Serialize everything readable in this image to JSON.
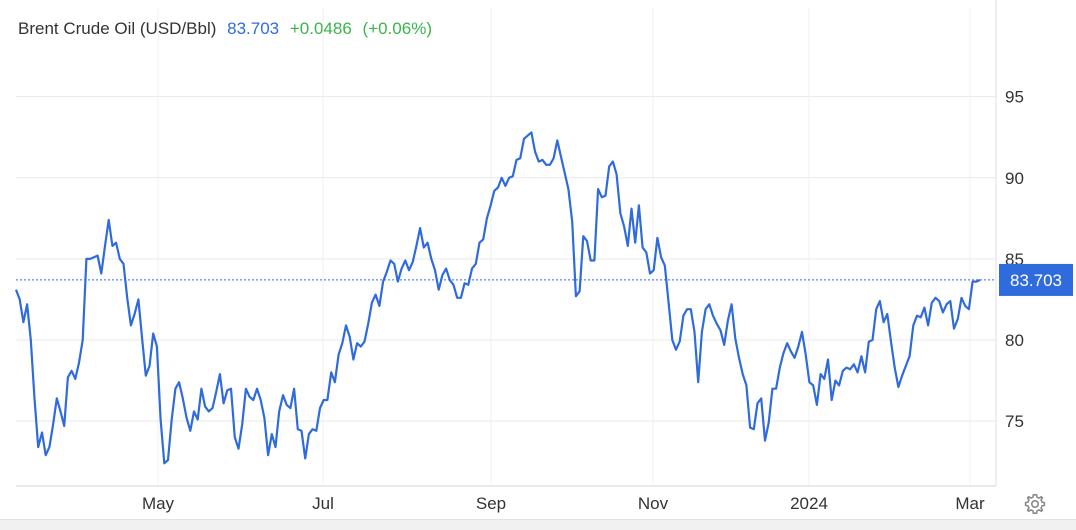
{
  "header": {
    "title": "Brent Crude Oil (USD/Bbl)",
    "price": "83.703",
    "change": "+0.0486",
    "change_pct": "(+0.06%)"
  },
  "colors": {
    "line": "#2f6bdc",
    "positive": "#3ab54a",
    "price_tag_bg": "#2f6bdc",
    "grid": "#e9e9e9"
  },
  "chart_data": {
    "type": "line",
    "xlabel": "",
    "ylabel": "",
    "ylim": [
      71,
      98
    ],
    "y_ticks": [
      75,
      80,
      85,
      90,
      95
    ],
    "x_tick_labels": [
      "May",
      "Jul",
      "Sep",
      "Nov",
      "2024",
      "Mar"
    ],
    "current_value": 83.703,
    "current_label": "83.703",
    "grid": true,
    "series": [
      {
        "values": [
          83.1,
          82.5,
          81.1,
          82.2,
          80.0,
          76.4,
          73.4,
          74.3,
          72.9,
          73.4,
          74.8,
          76.4,
          75.6,
          74.7,
          77.7,
          78.1,
          77.6,
          78.6,
          80.0,
          85.0,
          85.0,
          85.1,
          85.2,
          84.1,
          85.8,
          87.4,
          85.8,
          86.0,
          85.0,
          84.7,
          82.6,
          80.9,
          81.6,
          82.5,
          80.1,
          77.8,
          78.4,
          80.4,
          79.6,
          75.1,
          72.4,
          72.6,
          75.1,
          77.0,
          77.4,
          76.4,
          75.2,
          74.4,
          75.6,
          75.1,
          77.0,
          75.9,
          75.6,
          75.8,
          76.8,
          77.9,
          76.1,
          76.9,
          77.0,
          74.0,
          73.3,
          74.8,
          77.0,
          76.5,
          76.3,
          77.0,
          76.3,
          75.2,
          72.9,
          74.2,
          73.4,
          75.6,
          76.6,
          76.0,
          75.8,
          77.0,
          74.5,
          74.4,
          72.7,
          74.2,
          74.5,
          74.4,
          75.8,
          76.3,
          76.3,
          78.0,
          77.4,
          79.1,
          79.8,
          80.9,
          80.2,
          78.8,
          79.8,
          79.6,
          79.9,
          81.0,
          82.3,
          82.8,
          82.1,
          83.6,
          84.2,
          84.9,
          84.7,
          83.6,
          84.4,
          84.9,
          84.3,
          84.8,
          85.8,
          86.9,
          85.7,
          86.0,
          85.0,
          84.3,
          83.1,
          84.0,
          84.4,
          83.7,
          83.4,
          82.6,
          82.6,
          83.5,
          83.4,
          84.4,
          84.7,
          86.0,
          86.2,
          87.5,
          88.3,
          89.2,
          89.4,
          90.0,
          89.5,
          90.0,
          90.1,
          91.1,
          91.2,
          92.4,
          92.6,
          92.8,
          91.6,
          91.0,
          91.1,
          90.8,
          90.8,
          91.2,
          92.3,
          91.3,
          90.3,
          89.3,
          87.3,
          82.7,
          83.0,
          86.4,
          86.1,
          84.9,
          84.9,
          89.3,
          88.8,
          88.9,
          90.7,
          91.0,
          90.2,
          87.8,
          87.0,
          85.8,
          88.1,
          86.0,
          88.3,
          85.7,
          85.4,
          84.1,
          84.3,
          86.3,
          85.1,
          84.6,
          82.3,
          80.0,
          79.4,
          79.9,
          81.5,
          81.9,
          81.9,
          80.5,
          77.4,
          80.5,
          81.9,
          82.2,
          81.5,
          81.0,
          80.6,
          79.7,
          81.2,
          82.2,
          80.1,
          78.9,
          77.9,
          77.2,
          74.6,
          74.5,
          76.1,
          76.4,
          73.8,
          74.9,
          77.0,
          77.0,
          78.3,
          79.2,
          79.8,
          79.3,
          78.9,
          79.6,
          80.5,
          79.1,
          77.4,
          77.2,
          76.0,
          77.9,
          77.6,
          78.8,
          76.3,
          77.5,
          77.2,
          78.1,
          78.3,
          78.2,
          78.5,
          78.0,
          79.0,
          78.0,
          79.9,
          80.0,
          81.9,
          82.4,
          81.1,
          81.6,
          79.9,
          78.3,
          77.1,
          77.8,
          78.4,
          79.0,
          80.9,
          81.5,
          81.4,
          82.0,
          80.9,
          82.3,
          82.6,
          82.4,
          81.7,
          82.2,
          82.4,
          80.7,
          81.3,
          82.6,
          82.1,
          81.9,
          83.6,
          83.6,
          83.7
        ]
      }
    ]
  }
}
